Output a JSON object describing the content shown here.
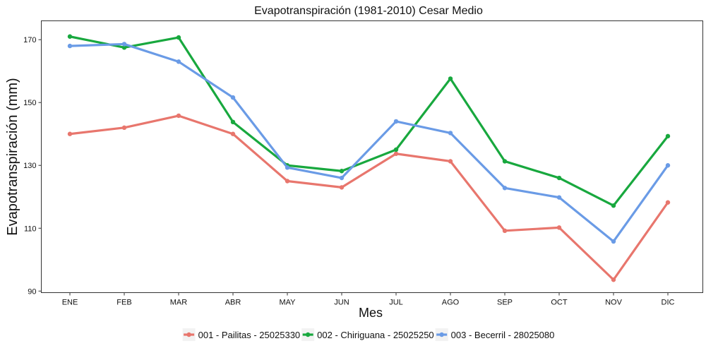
{
  "chart_data": {
    "type": "line",
    "title": "Evapotranspiración (1981-2010)  Cesar Medio",
    "xlabel": "Mes",
    "ylabel": "Evapotranspiración  (mm)",
    "categories": [
      "ENE",
      "FEB",
      "MAR",
      "ABR",
      "MAY",
      "JUN",
      "JUL",
      "AGO",
      "SEP",
      "OCT",
      "NOV",
      "DIC"
    ],
    "ylim": [
      89.5,
      176
    ],
    "yticks": [
      90,
      110,
      130,
      150,
      170
    ],
    "grid": false,
    "legend_position": "bottom",
    "series": [
      {
        "name": "001 - Pailitas - 25025330",
        "color": "#E8766D",
        "values": [
          140,
          142,
          145.8,
          140,
          125,
          123,
          133.7,
          131.3,
          109.2,
          110.2,
          93.6,
          118.2
        ]
      },
      {
        "name": "002 - Chiriguana - 25025250",
        "color": "#18A83E",
        "values": [
          171,
          167.5,
          170.7,
          143.8,
          130,
          128.2,
          135,
          157.6,
          131.3,
          126,
          117.2,
          139.3
        ]
      },
      {
        "name": "003 - Becerril - 28025080",
        "color": "#6A9BE6",
        "values": [
          168,
          168.6,
          163,
          151.6,
          129.3,
          126,
          144,
          140.3,
          122.8,
          119.8,
          105.8,
          130
        ]
      }
    ]
  }
}
